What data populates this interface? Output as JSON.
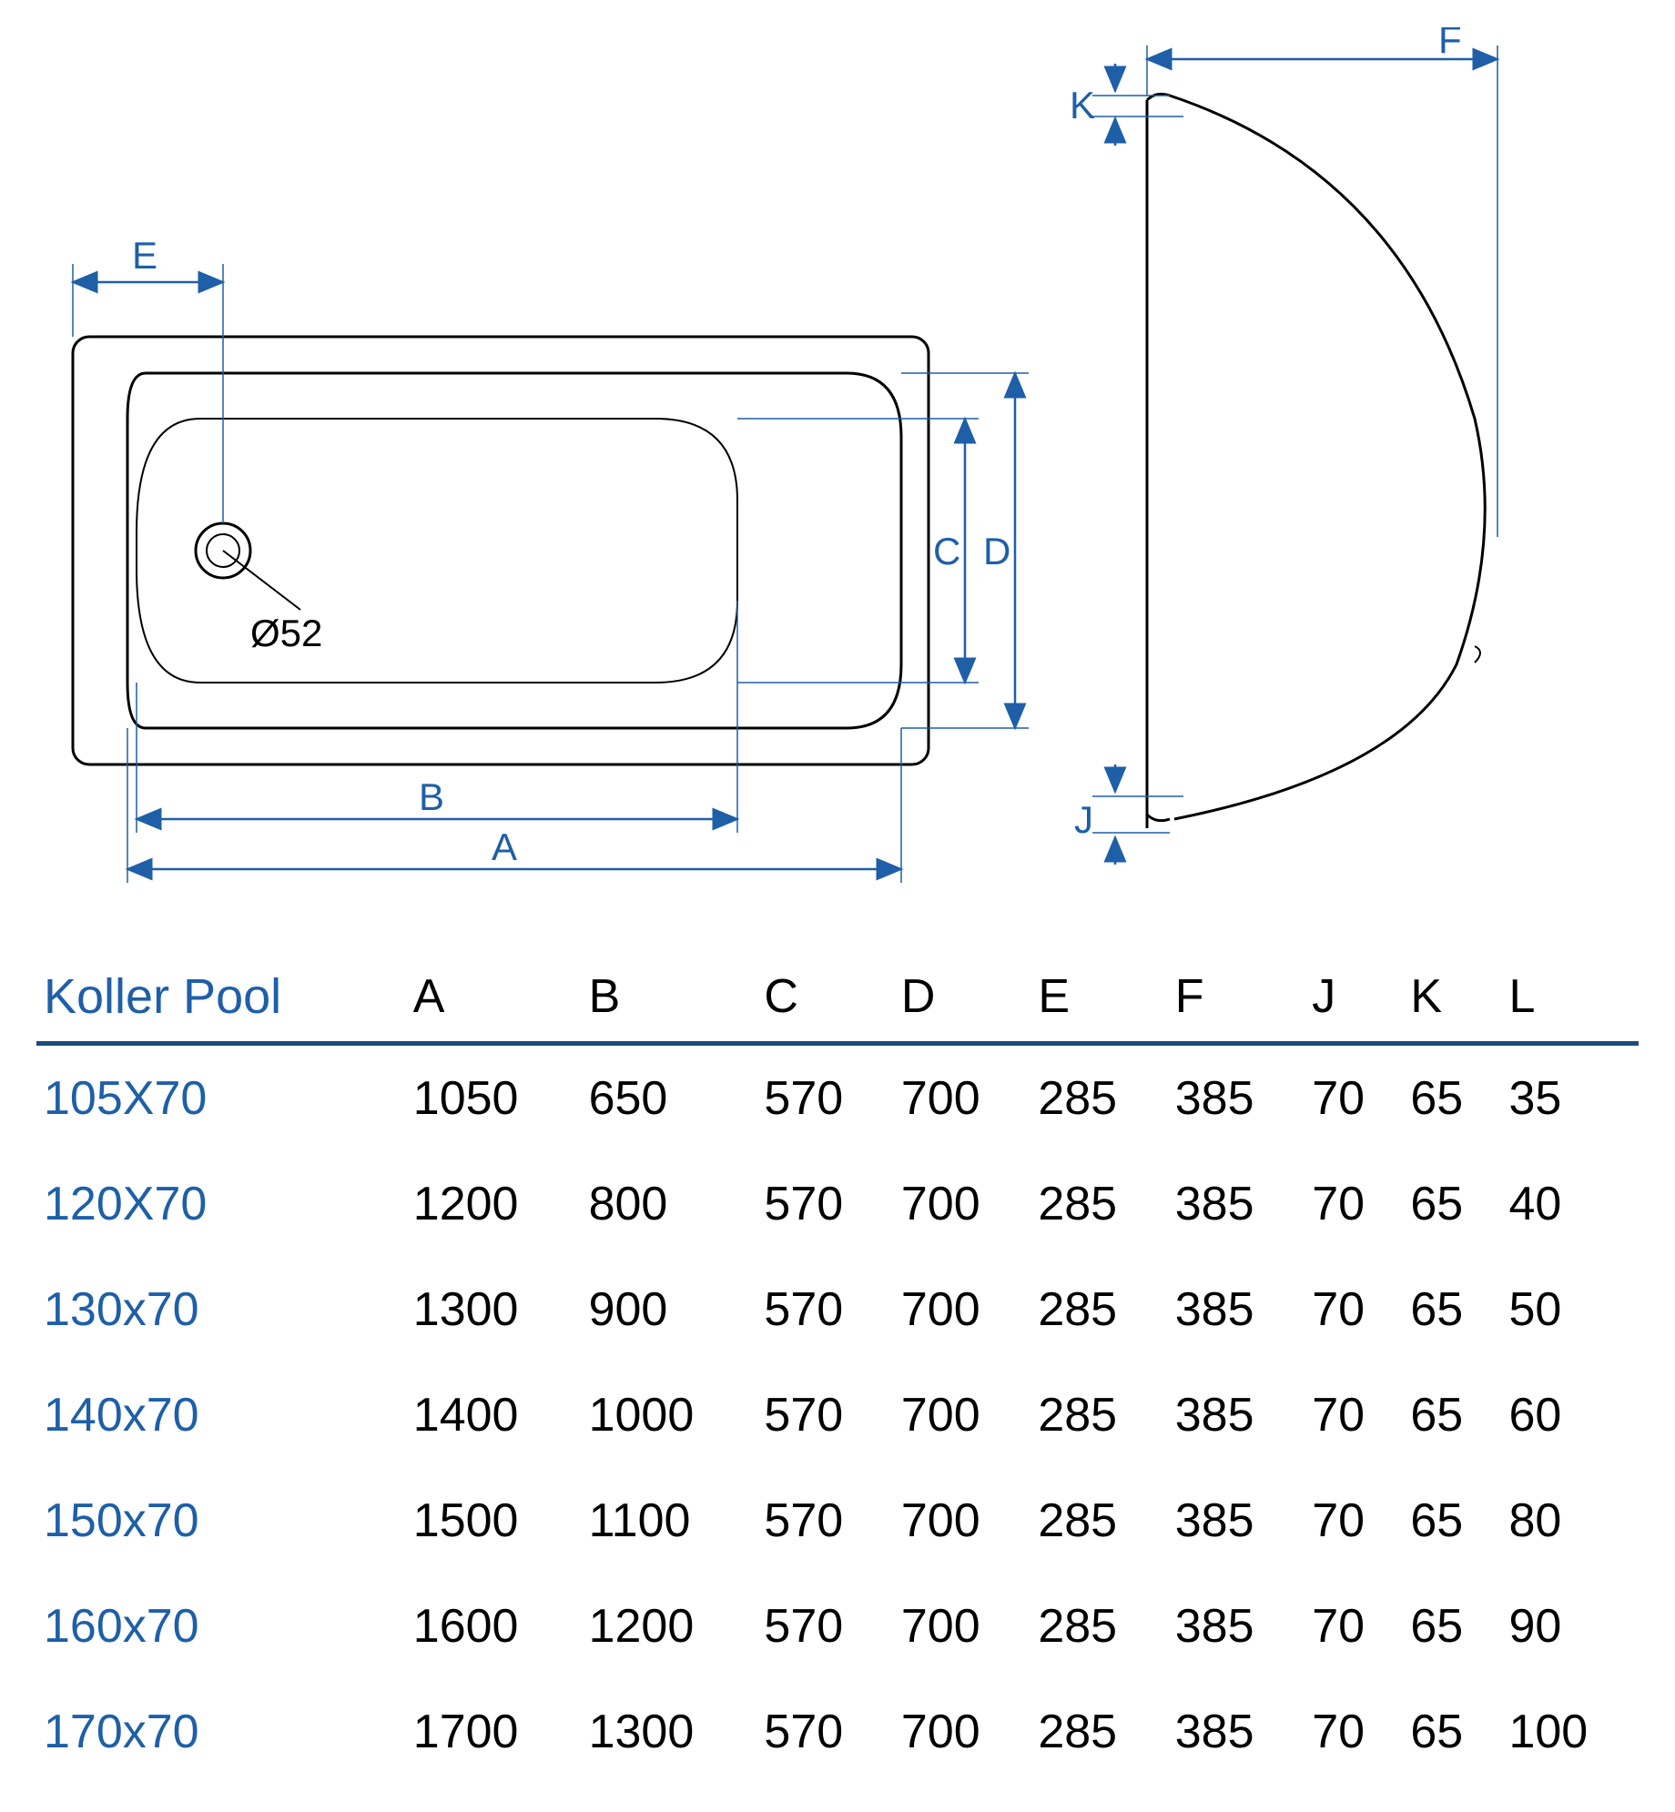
{
  "diagram": {
    "type": "technical-drawing",
    "dim_labels": {
      "A": "A",
      "B": "B",
      "C": "C",
      "D": "D",
      "E": "E",
      "F": "F",
      "J": "J",
      "K": "K"
    },
    "drain_label": "Ø52",
    "colors": {
      "dimension": "#1e5fa8",
      "outline": "#000000",
      "background": "#ffffff",
      "table_rule": "#1a4c7a"
    },
    "font_sizes": {
      "dim_label": 42,
      "table_header": 52,
      "table_title": 54,
      "table_body": 52
    },
    "line_widths": {
      "outline": 3,
      "outline_thin": 2,
      "dimension": 2.5,
      "extension": 1.5
    }
  },
  "table": {
    "title": "Koller Pool",
    "columns": [
      "A",
      "B",
      "C",
      "D",
      "E",
      "F",
      "J",
      "K",
      "L"
    ],
    "rows": [
      {
        "model": "105X70",
        "values": [
          "1050",
          "650",
          "570",
          "700",
          "285",
          "385",
          "70",
          "65",
          "35"
        ]
      },
      {
        "model": "120X70",
        "values": [
          "1200",
          "800",
          "570",
          "700",
          "285",
          "385",
          "70",
          "65",
          "40"
        ]
      },
      {
        "model": "130x70",
        "values": [
          "1300",
          "900",
          "570",
          "700",
          "285",
          "385",
          "70",
          "65",
          "50"
        ]
      },
      {
        "model": "140x70",
        "values": [
          "1400",
          "1000",
          "570",
          "700",
          "285",
          "385",
          "70",
          "65",
          "60"
        ]
      },
      {
        "model": "150x70",
        "values": [
          "1500",
          "1100",
          "570",
          "700",
          "285",
          "385",
          "70",
          "65",
          "80"
        ]
      },
      {
        "model": "160x70",
        "values": [
          "1600",
          "1200",
          "570",
          "700",
          "285",
          "385",
          "70",
          "65",
          "90"
        ]
      },
      {
        "model": "170x70",
        "values": [
          "1700",
          "1300",
          "570",
          "700",
          "285",
          "385",
          "70",
          "65",
          "100"
        ]
      }
    ]
  }
}
